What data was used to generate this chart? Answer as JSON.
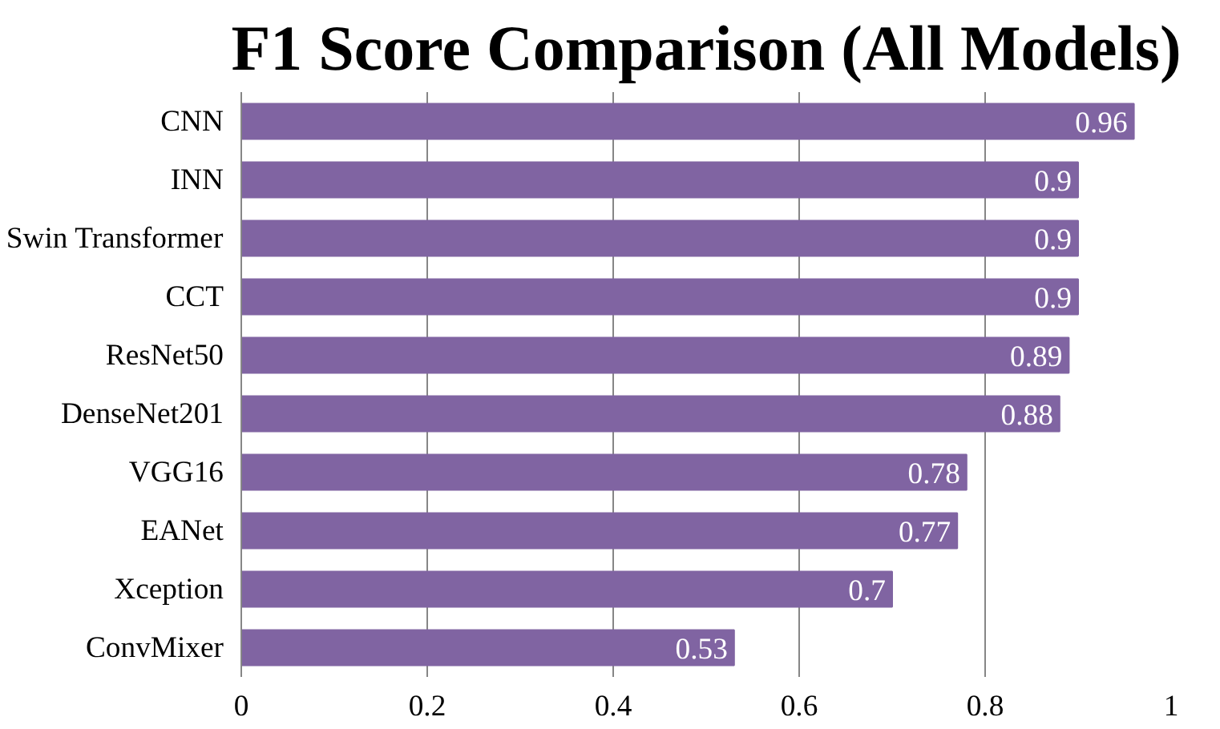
{
  "chart_data": {
    "type": "bar",
    "orientation": "horizontal",
    "title": "F1 Score Comparison (All Models)",
    "categories": [
      "CNN",
      "INN",
      "Swin Transformer",
      "CCT",
      "ResNet50",
      "DenseNet201",
      "VGG16",
      "EANet",
      "Xception",
      "ConvMixer"
    ],
    "values": [
      0.96,
      0.9,
      0.9,
      0.9,
      0.89,
      0.88,
      0.78,
      0.77,
      0.7,
      0.53
    ],
    "color": "#8064a2",
    "xlim": [
      0,
      1
    ],
    "xticks": [
      0,
      0.2,
      0.4,
      0.6,
      0.8,
      1
    ],
    "grid": "x",
    "data_labels": true
  }
}
